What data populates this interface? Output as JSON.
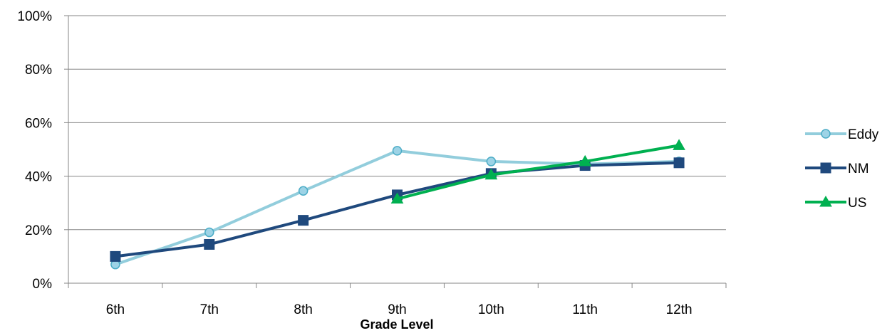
{
  "chart_data": {
    "type": "line",
    "categories": [
      "6th",
      "7th",
      "8th",
      "9th",
      "10th",
      "11th",
      "12th"
    ],
    "xlabel": "Grade Level",
    "ylabel": "",
    "ylim": [
      0,
      100
    ],
    "y_ticks": [
      "0%",
      "20%",
      "40%",
      "60%",
      "80%",
      "100%"
    ],
    "y_tick_values": [
      0,
      20,
      40,
      60,
      80,
      100
    ],
    "grid": true,
    "legend_position": "right",
    "series": [
      {
        "name": "Eddy",
        "marker": "circle",
        "color": "#92CDDC",
        "marker_fill": "#9DD3E6",
        "marker_stroke": "#4BACC6",
        "values": [
          7,
          19,
          34.5,
          49.5,
          45.5,
          44.5,
          45.5
        ]
      },
      {
        "name": "NM",
        "marker": "square",
        "color": "#1F497D",
        "marker_fill": "#1F497D",
        "marker_stroke": "#1F497D",
        "values": [
          10,
          14.5,
          23.5,
          33,
          41,
          44,
          45
        ]
      },
      {
        "name": "US",
        "marker": "triangle",
        "color": "#00B050",
        "marker_fill": "#00B050",
        "marker_stroke": "#00B050",
        "values": [
          null,
          null,
          null,
          31.5,
          40.5,
          45.5,
          51.5
        ]
      }
    ]
  }
}
